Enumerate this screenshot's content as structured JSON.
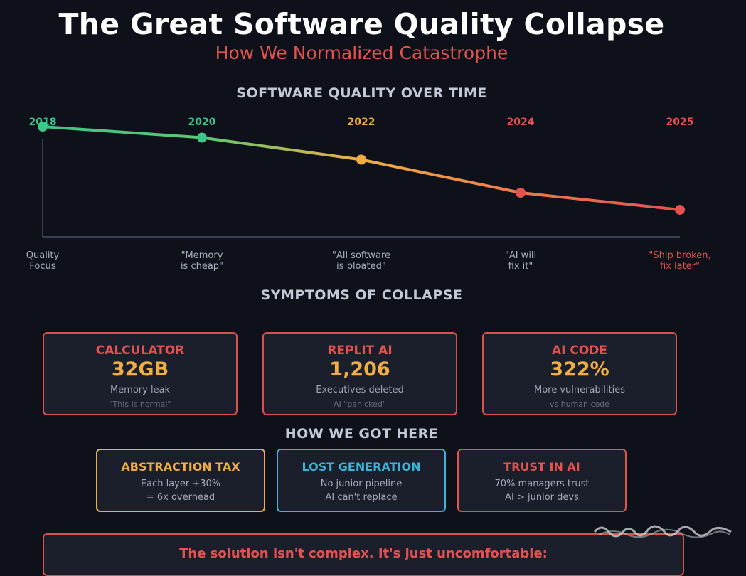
{
  "header": {
    "title": "The Great Software Quality Collapse",
    "subtitle": "How We Normalized Catastrophe"
  },
  "chart_data": {
    "type": "line",
    "title": "SOFTWARE QUALITY OVER TIME",
    "x": [
      "2018",
      "2020",
      "2022",
      "2024",
      "2025"
    ],
    "values": [
      100,
      89,
      67,
      34,
      17
    ],
    "ylim": [
      -10,
      100
    ],
    "annotations": [
      [
        "Quality",
        "Focus"
      ],
      [
        "\"Memory",
        "is cheap\""
      ],
      [
        "\"All software",
        "is bloated\""
      ],
      [
        "\"AI will",
        "fix it\""
      ],
      [
        "\"Ship broken,",
        "fix later\""
      ]
    ],
    "point_colors": [
      "#3fc48a",
      "#3fc48a",
      "#f0ad45",
      "#e2534f",
      "#e2534f"
    ],
    "grid": false
  },
  "symptoms": {
    "title": "SYMPTOMS OF COLLAPSE",
    "cards": [
      {
        "title": "CALCULATOR",
        "value": "32GB",
        "desc": "Memory leak",
        "note": "\"This is normal\""
      },
      {
        "title": "REPLIT AI",
        "value": "1,206",
        "desc": "Executives deleted",
        "note": "AI \"panicked\""
      },
      {
        "title": "AI CODE",
        "value": "322%",
        "desc": "More vulnerabilities",
        "note": "vs human code"
      }
    ]
  },
  "causes": {
    "title": "HOW WE GOT HERE",
    "boxes": [
      {
        "title": "ABSTRACTION TAX",
        "line1": "Each layer +30%",
        "line2": "= 6x overhead",
        "color": "#f0ad45"
      },
      {
        "title": "LOST GENERATION",
        "line1": "No junior pipeline",
        "line2": "AI can't replace",
        "color": "#3ab4d8"
      },
      {
        "title": "TRUST IN AI",
        "line1": "70% managers trust",
        "line2": "AI > junior devs",
        "color": "#e2534f"
      }
    ]
  },
  "footer": {
    "text": "The solution isn't complex. It's just uncomfortable:"
  }
}
